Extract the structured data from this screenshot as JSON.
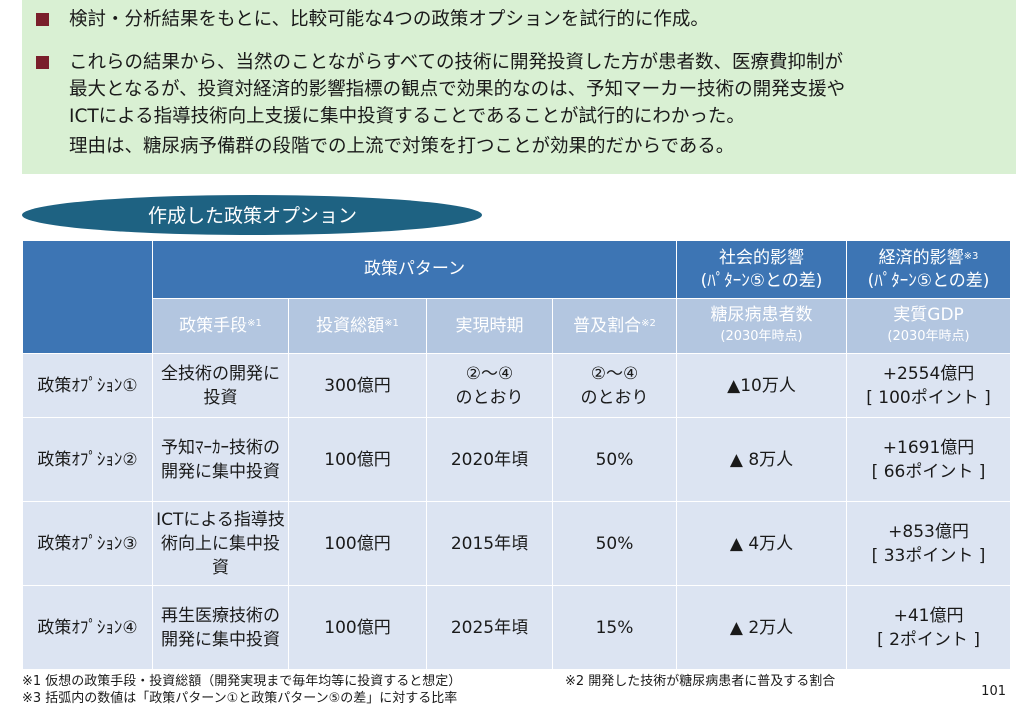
{
  "summary": {
    "bullet1": "検討・分析結果をもとに、比較可能な4つの政策オプションを試行的に作成。",
    "bullet2": "これらの結果から、当然のことながらすべての技術に開発投資した方が患者数、医療費抑制が\n最大となるが、投資対経済的影響指標の観点で効果的なのは、予知マーカー技術の開発支援や\nICTによる指導技術向上支援に集中投資することであることが試行的にわかった。",
    "continuation": "理由は、糖尿病予備群の段階での上流で対策を打つことが効果的だからである。"
  },
  "section_title": "作成した政策オプション",
  "table": {
    "header": {
      "policy_pattern": "政策パターン",
      "social_impact": "社会的影響",
      "social_sub": "(ﾊﾟﾀｰﾝ⑤との差)",
      "economic_impact": "経済的影響",
      "economic_note": "※3",
      "economic_sub": "(ﾊﾟﾀｰﾝ⑤との差)",
      "col_means": "政策手段",
      "col_means_note": "※1",
      "col_investment": "投資総額",
      "col_investment_note": "※1",
      "col_timing": "実現時期",
      "col_diffusion": "普及割合",
      "col_diffusion_note": "※2",
      "col_patients": "糖尿病患者数",
      "col_patients_sub": "(2030年時点)",
      "col_gdp": "実質GDP",
      "col_gdp_sub": "(2030年時点)"
    },
    "rows": [
      {
        "name": "政策ｵﾌﾟｼｮﾝ①",
        "means": "全技術の開発に投資",
        "investment": "300億円",
        "timing": "②～④\nのとおり",
        "diffusion": "②～④\nのとおり",
        "patients": "▲10万人",
        "gdp": "+2554億円",
        "points": "[ 100ポイント ]"
      },
      {
        "name": "政策ｵﾌﾟｼｮﾝ②",
        "means": "予知ﾏｰｶｰ技術の開発に集中投資",
        "investment": "100億円",
        "timing": "2020年頃",
        "diffusion": "50%",
        "patients": "▲ 8万人",
        "gdp": "+1691億円",
        "points": "[ 66ポイント ]"
      },
      {
        "name": "政策ｵﾌﾟｼｮﾝ③",
        "means": "ICTによる指導技術向上に集中投資",
        "investment": "100億円",
        "timing": "2015年頃",
        "diffusion": "50%",
        "patients": "▲ 4万人",
        "gdp": "+853億円",
        "points": "[ 33ポイント ]"
      },
      {
        "name": "政策ｵﾌﾟｼｮﾝ④",
        "means": "再生医療技術の開発に集中投資",
        "investment": "100億円",
        "timing": "2025年頃",
        "diffusion": "15%",
        "patients": "▲ 2万人",
        "gdp": "+41億円",
        "points": "[ 2ポイント ]"
      }
    ]
  },
  "footnotes": {
    "note1": "※1 仮想の政策手段・投資総額（開発実現まで毎年均等に投資すると想定）",
    "note2": "※2 開発した技術が糖尿病患者に普及する割合",
    "note3": "※3 括弧内の数値は「政策パターン①と政策パターン⑤の差」に対する比率"
  },
  "page_number": "101",
  "colors": {
    "summary_bg": "#d9f0d3",
    "bullet": "#7a1f2b",
    "header_dark": "#3d75b4",
    "header_light": "#b3c6e0",
    "row_bg": "#dce4f2",
    "ellipse": "#1e6282"
  }
}
